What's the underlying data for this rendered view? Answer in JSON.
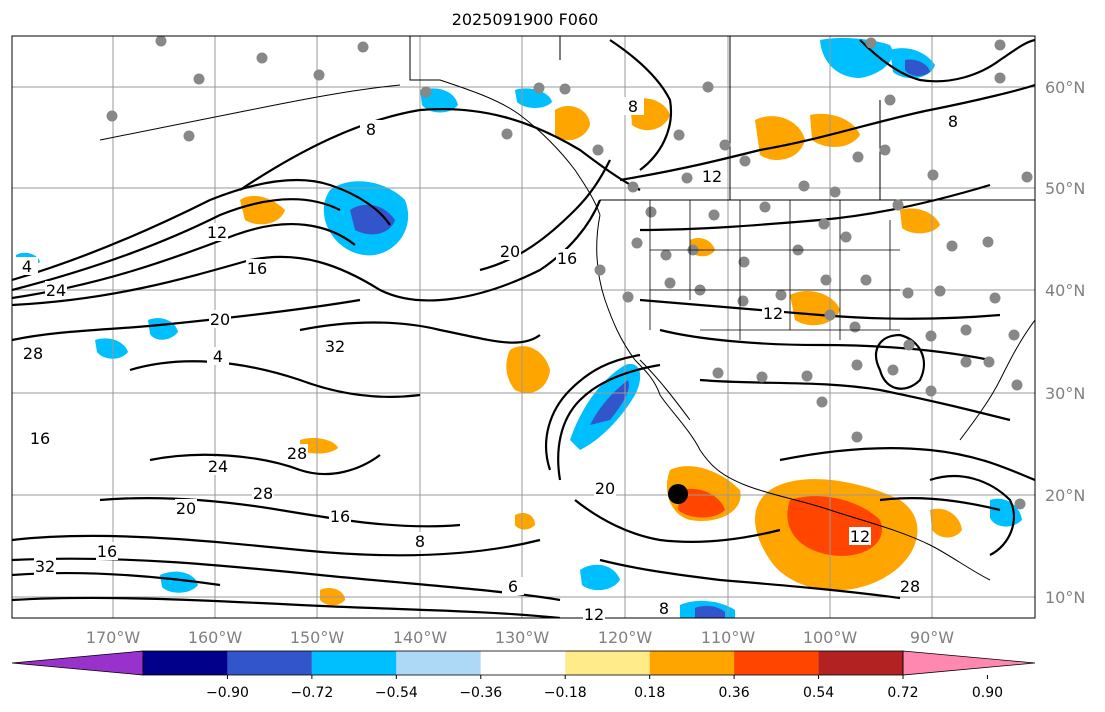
{
  "title": "2025091900 F060",
  "lon_ticks": [
    "170°W",
    "160°W",
    "150°W",
    "140°W",
    "130°W",
    "120°W",
    "110°W",
    "100°W",
    "90°W"
  ],
  "lat_ticks": [
    "60°N",
    "50°N",
    "40°N",
    "30°N",
    "20°N",
    "10°N"
  ],
  "colorbar": {
    "colors": [
      "#9932cc",
      "#00008b",
      "#3355cc",
      "#00bfff",
      "#add8f6",
      "#ffffff",
      "#ffeb8a",
      "#ffa500",
      "#ff4500",
      "#b22222",
      "#ff88b0"
    ],
    "labels": [
      "−0.90",
      "−0.72",
      "−0.54",
      "−0.36",
      "−0.18",
      "0.18",
      "0.36",
      "0.54",
      "0.72",
      "0.90"
    ]
  },
  "contour_labels": [
    "8",
    "12",
    "4",
    "16",
    "20",
    "24",
    "28",
    "32",
    "4",
    "20",
    "16",
    "12",
    "8",
    "8",
    "12",
    "16",
    "28",
    "24",
    "28",
    "20",
    "16",
    "8",
    "6",
    "8",
    "12",
    "16",
    "12",
    "28",
    "32",
    "20"
  ]
}
